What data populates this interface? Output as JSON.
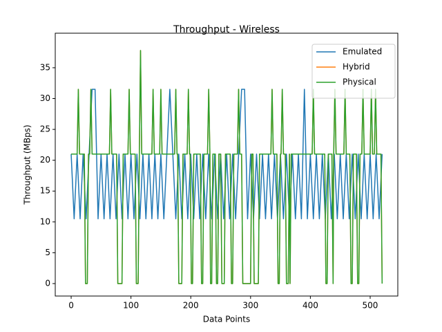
{
  "chart_data": {
    "type": "line",
    "title": "Throughput - Wireless",
    "xlabel": "Data Points",
    "ylabel": "Throughput (MBps)",
    "xlim": [
      -26.6,
      546.2
    ],
    "ylim": [
      -2.02,
      40.6
    ],
    "xticks": [
      0,
      100,
      200,
      300,
      400,
      500
    ],
    "yticks": [
      0,
      5,
      10,
      15,
      20,
      25,
      30,
      35
    ],
    "legend": "upper right",
    "series": [
      {
        "name": "Emulated",
        "color": "#1f77b4",
        "x": [
          0,
          5,
          10,
          15,
          20,
          25,
          30,
          35,
          40,
          45,
          50,
          55,
          60,
          65,
          70,
          75,
          80,
          85,
          90,
          95,
          100,
          105,
          110,
          115,
          120,
          125,
          130,
          135,
          140,
          145,
          150,
          155,
          160,
          165,
          170,
          175,
          180,
          185,
          190,
          195,
          200,
          205,
          210,
          215,
          220,
          225,
          230,
          235,
          240,
          245,
          250,
          255,
          260,
          265,
          270,
          275,
          280,
          285,
          290,
          295,
          300,
          305,
          310,
          315,
          320,
          325,
          330,
          335,
          340,
          345,
          350,
          355,
          360,
          365,
          370,
          375,
          380,
          385,
          390,
          395,
          400,
          405,
          410,
          415,
          420,
          425,
          430,
          435,
          440,
          445,
          450,
          455,
          460,
          465,
          470,
          475,
          480,
          485,
          490,
          495,
          500,
          505,
          510,
          515,
          520
        ],
        "values": [
          21,
          10.5,
          21,
          10.5,
          21,
          10.5,
          21,
          31.5,
          31.5,
          10.5,
          21,
          10.5,
          21,
          10.5,
          21,
          10.5,
          21,
          10.5,
          21,
          10.5,
          21,
          10.5,
          21,
          10.5,
          21,
          10.5,
          21,
          10.5,
          21,
          10.5,
          21,
          10.5,
          21,
          31.5,
          21,
          10.5,
          21,
          10.5,
          21,
          10.5,
          21,
          10.5,
          21,
          10.5,
          21,
          10.5,
          21,
          10.5,
          21,
          10.5,
          21,
          10.5,
          21,
          10.5,
          21,
          10.5,
          21,
          31.5,
          31.5,
          10.5,
          21,
          10.5,
          21,
          10.5,
          21,
          10.5,
          21,
          10.5,
          21,
          10.5,
          21,
          10.5,
          21,
          10.5,
          21,
          10.5,
          21,
          10.5,
          31.5,
          10.5,
          21,
          10.5,
          21,
          10.5,
          21,
          10.5,
          21,
          10.5,
          21,
          10.5,
          21,
          10.5,
          21,
          10.5,
          21,
          10.5,
          21,
          10.5,
          21,
          10.5,
          21,
          10.5,
          21,
          10.5,
          21
        ]
      },
      {
        "name": "Hybrid",
        "color": "#ff7f0e",
        "x": [
          0,
          10,
          12,
          14,
          22,
          24,
          27,
          29,
          31,
          33,
          35,
          64,
          66,
          68,
          76,
          78,
          85,
          87,
          95,
          97,
          99,
          107,
          109,
          112,
          114,
          116,
          118,
          135,
          137,
          139,
          148,
          150,
          152,
          173,
          175,
          177,
          178,
          180,
          185,
          187,
          194,
          196,
          198,
          199,
          201,
          203,
          205,
          216,
          218,
          220,
          222,
          228,
          230,
          232,
          233,
          235,
          237,
          241,
          243,
          245,
          247,
          250,
          252,
          256,
          258,
          266,
          268,
          270,
          272,
          278,
          280,
          282,
          285,
          287,
          300,
          302,
          304,
          306,
          313,
          315,
          334,
          336,
          338,
          344,
          346,
          348,
          350,
          351,
          353,
          355,
          358,
          360,
          363,
          365,
          366,
          368,
          403,
          405,
          407,
          424,
          426,
          428,
          430,
          436,
          438,
          439,
          441,
          443,
          456,
          458,
          460,
          466,
          468,
          470,
          472,
          477,
          479,
          481,
          483,
          486,
          488,
          490,
          500,
          502,
          504,
          507,
          509,
          511,
          518,
          520
        ],
        "values": [
          21,
          21,
          31.5,
          21,
          21,
          0,
          0,
          21,
          21,
          31.5,
          21,
          21,
          31.5,
          21,
          21,
          0,
          0,
          21,
          21,
          31.5,
          21,
          21,
          0,
          0,
          21,
          37.8,
          21,
          21,
          31.5,
          21,
          21,
          31.5,
          21,
          21,
          31.5,
          21,
          21,
          0,
          0,
          21,
          21,
          31.5,
          21,
          21,
          0,
          0,
          21,
          21,
          0,
          0,
          21,
          21,
          31.5,
          21,
          0,
          0,
          21,
          21,
          0,
          0,
          21,
          21,
          0,
          0,
          21,
          21,
          0,
          0,
          21,
          21,
          31.5,
          21,
          21,
          0,
          0,
          21,
          21,
          0,
          0,
          21,
          21,
          31.5,
          21,
          21,
          0,
          0,
          21,
          21,
          31.5,
          21,
          21,
          0,
          0,
          21,
          0,
          21,
          21,
          31.5,
          21,
          21,
          0,
          0,
          21,
          21,
          0,
          21,
          31.5,
          21,
          21,
          31.5,
          21,
          21,
          0,
          0,
          21,
          21,
          0,
          0,
          21,
          21,
          31.5,
          21,
          21,
          31.5,
          21,
          21,
          31.5,
          21,
          21,
          0
        ]
      },
      {
        "name": "Physical",
        "color": "#2ca02c",
        "x": [
          0,
          10,
          12,
          14,
          22,
          24,
          27,
          29,
          31,
          33,
          35,
          64,
          66,
          68,
          76,
          78,
          85,
          87,
          95,
          97,
          99,
          107,
          109,
          112,
          114,
          116,
          118,
          135,
          137,
          139,
          148,
          150,
          152,
          173,
          175,
          177,
          178,
          180,
          185,
          187,
          194,
          196,
          198,
          199,
          201,
          203,
          205,
          216,
          218,
          220,
          222,
          228,
          230,
          232,
          233,
          235,
          237,
          241,
          243,
          245,
          247,
          250,
          252,
          256,
          258,
          266,
          268,
          270,
          272,
          278,
          280,
          282,
          285,
          287,
          300,
          302,
          304,
          306,
          313,
          315,
          334,
          336,
          338,
          344,
          346,
          348,
          350,
          351,
          353,
          355,
          358,
          360,
          363,
          365,
          366,
          368,
          403,
          405,
          407,
          424,
          426,
          428,
          430,
          436,
          438,
          439,
          441,
          443,
          456,
          458,
          460,
          466,
          468,
          470,
          472,
          477,
          479,
          481,
          483,
          486,
          488,
          490,
          500,
          502,
          504,
          507,
          509,
          511,
          518,
          520
        ],
        "values": [
          21,
          21,
          31.5,
          21,
          21,
          0,
          0,
          21,
          21,
          31.5,
          21,
          21,
          31.5,
          21,
          21,
          0,
          0,
          21,
          21,
          31.5,
          21,
          21,
          0,
          0,
          21,
          37.8,
          21,
          21,
          31.5,
          21,
          21,
          31.5,
          21,
          21,
          31.5,
          21,
          21,
          0,
          0,
          21,
          21,
          31.5,
          21,
          21,
          0,
          0,
          21,
          21,
          0,
          0,
          21,
          21,
          31.5,
          21,
          0,
          0,
          21,
          21,
          0,
          0,
          21,
          21,
          0,
          0,
          21,
          21,
          0,
          0,
          21,
          21,
          31.5,
          21,
          21,
          0,
          0,
          21,
          21,
          0,
          0,
          21,
          21,
          31.5,
          21,
          21,
          0,
          0,
          21,
          21,
          31.5,
          21,
          21,
          0,
          0,
          21,
          0,
          21,
          21,
          31.5,
          21,
          21,
          0,
          0,
          21,
          21,
          0,
          21,
          31.5,
          21,
          21,
          31.5,
          21,
          21,
          0,
          0,
          21,
          21,
          0,
          0,
          21,
          21,
          31.5,
          21,
          21,
          31.5,
          21,
          21,
          31.5,
          21,
          21,
          0
        ]
      }
    ]
  }
}
